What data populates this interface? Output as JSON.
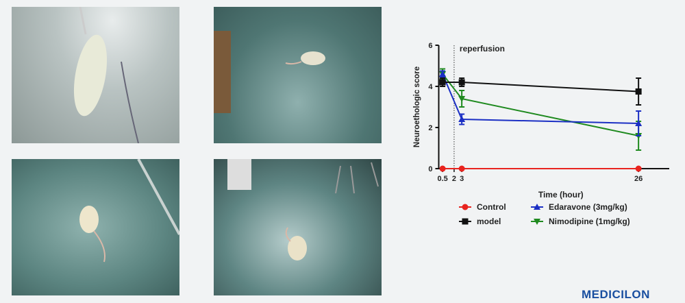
{
  "logo_text": "MEDICILON",
  "chart_data": {
    "type": "line",
    "title": "",
    "xlabel": "Time (hour)",
    "ylabel": "Neuroethologic score",
    "x": [
      0.5,
      3,
      26
    ],
    "x_ticks": [
      0.5,
      2,
      3,
      26
    ],
    "y_ticks": [
      0,
      2,
      4,
      6
    ],
    "xlim": [
      0,
      30
    ],
    "ylim": [
      0,
      6
    ],
    "annotation": {
      "text": "reperfusion",
      "x": 2,
      "style": "dotted vertical line"
    },
    "legend_placement": "bottom",
    "series": [
      {
        "name": "Control",
        "values": [
          0,
          0,
          0
        ],
        "errors": [
          0,
          0,
          0
        ],
        "color": "#e8231e",
        "marker": "circle"
      },
      {
        "name": "model",
        "values": [
          4.2,
          4.2,
          3.75
        ],
        "errors": [
          0.2,
          0.2,
          0.65
        ],
        "color": "#111111",
        "marker": "square"
      },
      {
        "name": "Edaravone (3mg/kg)",
        "values": [
          4.6,
          2.4,
          2.2
        ],
        "errors": [
          0.15,
          0.25,
          0.6
        ],
        "color": "#1b2fc4",
        "marker": "triangle-up"
      },
      {
        "name": "Nimodipine (1mg/kg)",
        "values": [
          4.6,
          3.4,
          1.6
        ],
        "errors": [
          0.25,
          0.4,
          0.7
        ],
        "color": "#1f8a1f",
        "marker": "triangle-down"
      }
    ]
  }
}
